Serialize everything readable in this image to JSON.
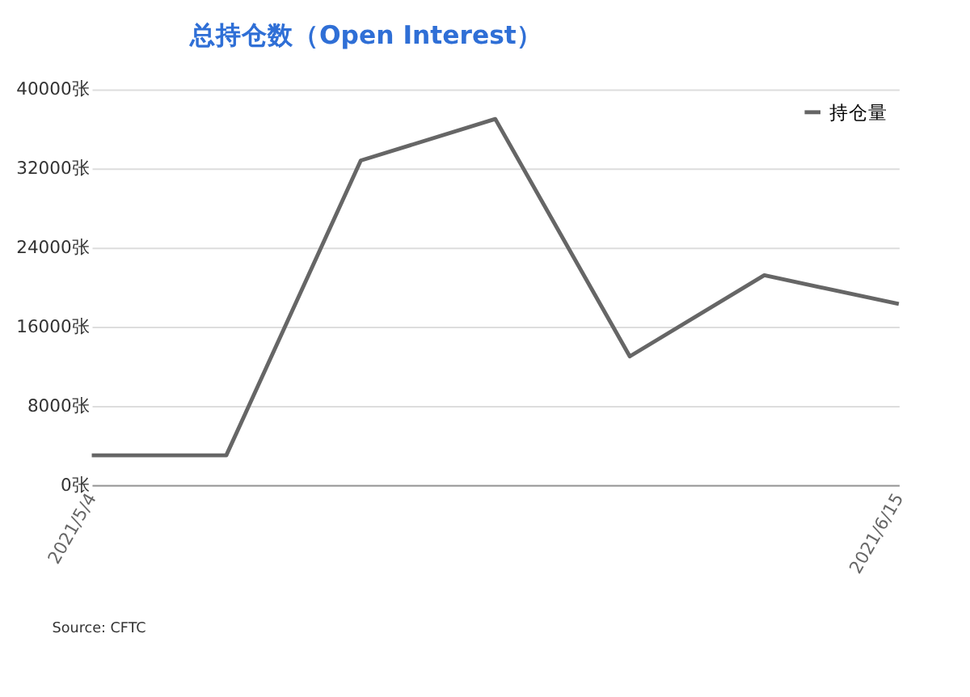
{
  "chart_data": {
    "type": "line",
    "title": "总持仓数（Open Interest）",
    "categories": [
      "2021/5/4",
      null,
      null,
      null,
      null,
      null,
      "2021/6/15"
    ],
    "series": [
      {
        "name": "持仓量",
        "color": "#666666",
        "values": [
          3000,
          3000,
          32800,
          37000,
          13000,
          21200,
          18300
        ]
      }
    ],
    "ylim": [
      0,
      40000
    ],
    "yticks": [
      {
        "value": 0,
        "label": "0张"
      },
      {
        "value": 8000,
        "label": "8000张"
      },
      {
        "value": 16000,
        "label": "16000张"
      },
      {
        "value": 24000,
        "label": "24000张"
      },
      {
        "value": 32000,
        "label": "32000张"
      },
      {
        "value": 40000,
        "label": "40000张"
      }
    ],
    "grid": "y",
    "legend": "top right",
    "marker": "none",
    "line_style": "solid",
    "annotations": [
      "Source: CFTC"
    ]
  }
}
